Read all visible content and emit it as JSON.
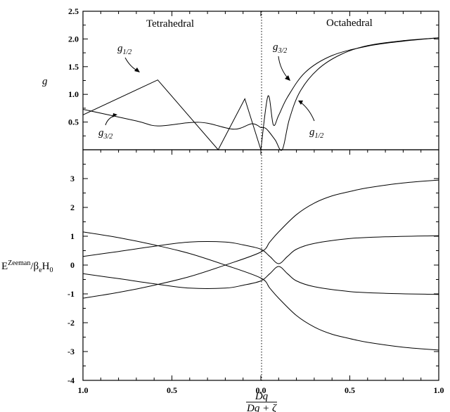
{
  "chart_data": [
    {
      "type": "line",
      "panel": "upper",
      "ylabel": "g",
      "ylim": [
        0,
        2.5
      ],
      "yticks": [
        0.5,
        1.0,
        1.5,
        2.0,
        2.5
      ],
      "ytick_labels": [
        "0.5",
        "1.0",
        "1.5",
        "2.0",
        "2.5"
      ],
      "region_labels": [
        "Tetrahedral",
        "Octahedral"
      ],
      "annotations": [
        {
          "sub": "1/2",
          "target": "g12-tet"
        },
        {
          "sub": "3/2",
          "target": "g32-tet"
        },
        {
          "sub": "3/2",
          "target": "g32-oct"
        },
        {
          "sub": "1/2",
          "target": "g12-oct"
        }
      ],
      "series": [
        {
          "id": "g12-tet",
          "x": [
            -1.0,
            -0.58,
            -0.24,
            -0.09,
            0.0
          ],
          "y": [
            0.63,
            1.26,
            0.0,
            0.92,
            0.0
          ]
        },
        {
          "id": "g32-tet",
          "x": [
            -1.0,
            -0.7,
            -0.58,
            -0.4,
            -0.3,
            -0.15,
            -0.05,
            0.0
          ],
          "y": [
            0.73,
            0.52,
            0.43,
            0.49,
            0.48,
            0.37,
            0.47,
            0.4
          ]
        },
        {
          "id": "g32-oct",
          "x": [
            0.0,
            0.04,
            0.07,
            0.1,
            0.15,
            0.25,
            0.4,
            0.6,
            0.8,
            1.0
          ],
          "y": [
            0.0,
            0.97,
            0.45,
            0.62,
            0.95,
            1.4,
            1.7,
            1.87,
            1.96,
            2.02
          ]
        },
        {
          "id": "g12-oct",
          "x": [
            0.0,
            0.03,
            0.08,
            0.12,
            0.16,
            0.22,
            0.32,
            0.45,
            0.6,
            0.8,
            1.0
          ],
          "y": [
            0.4,
            0.38,
            0.18,
            0.0,
            0.55,
            1.05,
            1.45,
            1.72,
            1.88,
            1.97,
            2.02
          ]
        }
      ]
    },
    {
      "type": "line",
      "panel": "lower",
      "xlabel_num": "Dq",
      "xlabel_den": "Dq + ζ",
      "ylabel": "E",
      "ylabel_sup": "Zeeman",
      "ylabel_tail": "/β",
      "ylabel_sub": "e",
      "ylabel_end": "H",
      "ylabel_end_sub": "0",
      "ylim": [
        -4,
        4
      ],
      "yticks": [
        -4,
        -3,
        -2,
        -1,
        0,
        1,
        2,
        3
      ],
      "ytick_labels": [
        "-4",
        "-3",
        "-2",
        "-1",
        "0",
        "1",
        "2",
        "3"
      ],
      "xticks": [
        -1.0,
        -0.5,
        0.0,
        0.5,
        1.0
      ],
      "xtick_labels": [
        "1.0",
        "0.5",
        "0.0",
        "0.5",
        "1.0"
      ],
      "series": [
        {
          "id": "e1",
          "x": [
            -1.0,
            -0.8,
            -0.6,
            -0.4,
            -0.2,
            0.0,
            0.05,
            0.1,
            0.2,
            0.3,
            0.4,
            0.5,
            0.6,
            0.8,
            1.0
          ],
          "y": [
            1.15,
            0.95,
            0.7,
            0.4,
            0.0,
            -0.45,
            -0.8,
            -1.15,
            -1.75,
            -2.15,
            -2.4,
            -2.55,
            -2.68,
            -2.85,
            -2.95
          ]
        },
        {
          "id": "e2",
          "x": [
            -1.0,
            -0.8,
            -0.6,
            -0.4,
            -0.2,
            0.0,
            0.05,
            0.1,
            0.2,
            0.3,
            0.4,
            0.5,
            0.6,
            0.8,
            1.0
          ],
          "y": [
            -1.15,
            -0.95,
            -0.7,
            -0.4,
            0.0,
            0.45,
            0.8,
            1.15,
            1.75,
            2.15,
            2.4,
            2.55,
            2.68,
            2.85,
            2.95
          ]
        },
        {
          "id": "e3",
          "x": [
            -1.0,
            -0.8,
            -0.6,
            -0.4,
            -0.2,
            -0.1,
            0.0,
            0.05,
            0.1,
            0.15,
            0.2,
            0.3,
            0.5,
            0.7,
            1.0
          ],
          "y": [
            0.3,
            0.47,
            0.65,
            0.8,
            0.8,
            0.7,
            0.55,
            0.3,
            0.05,
            0.3,
            0.55,
            0.75,
            0.92,
            0.98,
            1.02
          ]
        },
        {
          "id": "e4",
          "x": [
            -1.0,
            -0.8,
            -0.6,
            -0.4,
            -0.2,
            -0.1,
            0.0,
            0.05,
            0.1,
            0.15,
            0.2,
            0.3,
            0.5,
            0.7,
            1.0
          ],
          "y": [
            -0.3,
            -0.47,
            -0.65,
            -0.8,
            -0.8,
            -0.7,
            -0.55,
            -0.3,
            -0.05,
            -0.3,
            -0.55,
            -0.75,
            -0.92,
            -0.98,
            -1.02
          ]
        }
      ]
    }
  ]
}
